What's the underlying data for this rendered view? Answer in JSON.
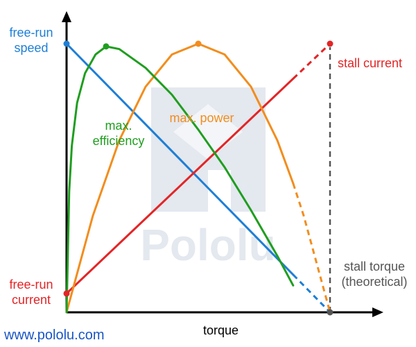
{
  "chart_data": {
    "type": "line",
    "title": "",
    "xlabel": "torque",
    "ylabel": "",
    "xlim": [
      0,
      1
    ],
    "ylim": [
      0,
      1
    ],
    "grid": false,
    "legend": "none",
    "watermark_text": "Pololu",
    "series": [
      {
        "key": "speed",
        "color": "#1e7fd6",
        "x": [
          0.0,
          0.25,
          0.5,
          0.75,
          0.86,
          1.0
        ],
        "y": [
          1.0,
          0.75,
          0.5,
          0.25,
          0.14,
          0.0
        ],
        "dashed_after_x": 0.86
      },
      {
        "key": "current",
        "color": "#e32526",
        "x": [
          0.0,
          0.25,
          0.5,
          0.75,
          0.86,
          1.0
        ],
        "y": [
          0.07,
          0.3025,
          0.535,
          0.7675,
          0.8698,
          1.0
        ],
        "dashed_after_x": 0.86
      },
      {
        "key": "power",
        "color": "#f28d1e",
        "x": [
          0.0,
          0.1,
          0.2,
          0.3,
          0.4,
          0.5,
          0.6,
          0.7,
          0.8,
          0.86,
          0.9,
          1.0
        ],
        "y": [
          0.0,
          0.36,
          0.64,
          0.84,
          0.96,
          1.0,
          0.96,
          0.84,
          0.64,
          0.48,
          0.36,
          0.0
        ],
        "dashed_after_x": 0.86
      },
      {
        "key": "efficiency",
        "color": "#1f9e1f",
        "x": [
          0.0,
          0.01,
          0.02,
          0.04,
          0.07,
          0.11,
          0.15,
          0.2,
          0.3,
          0.4,
          0.5,
          0.6,
          0.7,
          0.8,
          0.86
        ],
        "y": [
          0.0,
          0.45,
          0.62,
          0.78,
          0.89,
          0.96,
          0.99,
          0.98,
          0.91,
          0.81,
          0.68,
          0.54,
          0.38,
          0.21,
          0.1
        ],
        "dashed_after_x": 0.86
      }
    ],
    "points": [
      {
        "series": "speed",
        "x": 0.0,
        "y": 1.0,
        "label": "free-run speed"
      },
      {
        "series": "current",
        "x": 0.0,
        "y": 0.07,
        "label": "free-run current"
      },
      {
        "series": "current",
        "x": 1.0,
        "y": 1.0,
        "label": "stall current"
      },
      {
        "series": "power",
        "x": 0.5,
        "y": 1.0,
        "label": "max. power"
      },
      {
        "series": "efficiency",
        "x": 0.15,
        "y": 0.99,
        "label": "max. efficiency"
      },
      {
        "series": "stall",
        "x": 1.0,
        "y": 0.0,
        "label": "stall torque (theoretical)"
      }
    ]
  },
  "labels": {
    "free_run_speed_1": "free-run",
    "free_run_speed_2": "speed",
    "free_run_current_1": "free-run",
    "free_run_current_2": "current",
    "stall_current": "stall current",
    "max_power": "max. power",
    "max_efficiency_1": "max.",
    "max_efficiency_2": "efficiency",
    "stall_torque_1": "stall torque",
    "stall_torque_2": "(theoretical)",
    "x_axis": "torque",
    "website": "www.pololu.com"
  },
  "colors": {
    "speed": "#1e7fd6",
    "current": "#e32526",
    "power": "#f28d1e",
    "efficiency": "#1f9e1f",
    "axis": "#000000",
    "stall": "#555555",
    "website": "#1a56c4",
    "watermark": "#e4e8ef"
  },
  "icons": {
    "watermark": "pololu-logo-watermark-icon"
  }
}
